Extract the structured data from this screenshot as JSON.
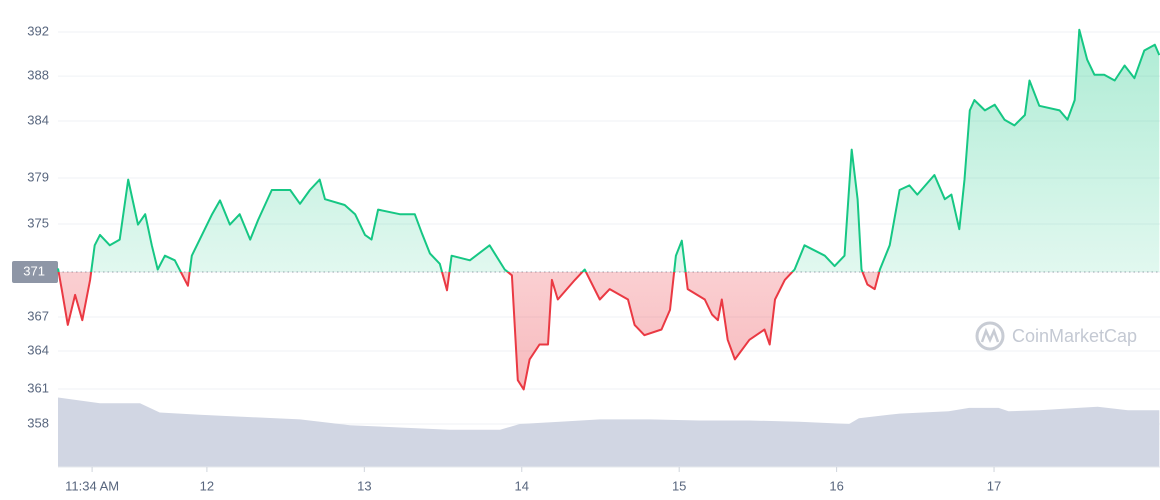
{
  "chart_data": {
    "type": "line",
    "xlim": [
      0,
      168
    ],
    "xticks": [
      {
        "value": 5.2,
        "label": "11:34 AM"
      },
      {
        "value": 22.7,
        "label": "12"
      },
      {
        "value": 46.7,
        "label": "13"
      },
      {
        "value": 70.7,
        "label": "14"
      },
      {
        "value": 94.7,
        "label": "15"
      },
      {
        "value": 118.7,
        "label": "16"
      },
      {
        "value": 142.7,
        "label": "17"
      }
    ],
    "ylim": [
      354.27,
      394.78
    ],
    "yticks": [
      {
        "value": 392,
        "label": "392"
      },
      {
        "value": 388.18,
        "label": "388"
      },
      {
        "value": 384.28,
        "label": "384"
      },
      {
        "value": 379.34,
        "label": "379"
      },
      {
        "value": 375.35,
        "label": "375"
      },
      {
        "value": 371.18,
        "label": "371"
      },
      {
        "value": 367.28,
        "label": "367"
      },
      {
        "value": 364.33,
        "label": "364"
      },
      {
        "value": 361.04,
        "label": "361"
      },
      {
        "value": 358,
        "label": "358"
      }
    ],
    "baseline": 371.18,
    "grid": true,
    "up_color": "#16c784",
    "down_color": "#ea3943",
    "watermark": "CoinMarketCap",
    "series": [
      {
        "color": "#16c784",
        "x": [
          0,
          0.6,
          1.5,
          2.6,
          3.7,
          4.9,
          5.6,
          6.4,
          7.9,
          9.4,
          10.7,
          12.2,
          13.3,
          14.3,
          15.2,
          16.3,
          17.8,
          19.8,
          20.4,
          21.6,
          23.5,
          24.7,
          26.2,
          27.7,
          29.3,
          30.5,
          32.6,
          35.4,
          36.9,
          38.4,
          39.9,
          40.7,
          43.7,
          45.3,
          46.8,
          47.8,
          48.8,
          52.1,
          54.4,
          55.5,
          56.7,
          58.2,
          59.3,
          60,
          62.8,
          65.8,
          68.1,
          69.2,
          70.1,
          71,
          71.9,
          73.4,
          74.7,
          75.3,
          76.2,
          78.8,
          80.3,
          82.6,
          84.1,
          86.9,
          87.9,
          89.4,
          92,
          93.3,
          94.2,
          95.1,
          96,
          98.6,
          99.7,
          100.6,
          101.2,
          102.1,
          103.2,
          105.4,
          107.7,
          108.5,
          109.3,
          110.8,
          112.3,
          113.8,
          116.9,
          118.4,
          119.9,
          121,
          121.9,
          122.5,
          123.4,
          124.5,
          125.3,
          126.8,
          128.3,
          129.8,
          131,
          133.6,
          135.2,
          136.2,
          137.4,
          138.2,
          139,
          139.7,
          141.3,
          142.8,
          144.3,
          145.8,
          147.4,
          148.1,
          149.6,
          152.7,
          153.9,
          155,
          155.7,
          156.9,
          158,
          159.5,
          161.1,
          162.6,
          164.1,
          165.6,
          167.2,
          167.9
        ],
        "values": [
          371.5,
          369.6,
          366.6,
          369.2,
          367,
          370.5,
          373.5,
          374.4,
          373.5,
          374,
          379.2,
          375.3,
          376.2,
          373.5,
          371.4,
          372.6,
          372.2,
          370,
          372.6,
          374,
          376.2,
          377.4,
          375.3,
          376.2,
          374,
          375.7,
          378.3,
          378.3,
          377.1,
          378.3,
          379.2,
          377.5,
          377,
          376.2,
          374.4,
          374,
          376.6,
          376.2,
          376.2,
          374.5,
          372.8,
          371.9,
          369.6,
          372.6,
          372.2,
          373.5,
          371.4,
          370.9,
          361.8,
          361,
          363.6,
          364.9,
          364.9,
          370.5,
          368.8,
          370.5,
          371.4,
          368.8,
          369.7,
          368.8,
          366.6,
          365.7,
          366.2,
          367.9,
          372.6,
          373.9,
          369.7,
          368.8,
          367.5,
          367,
          368.8,
          365.3,
          363.6,
          365.3,
          366.2,
          364.9,
          368.8,
          370.5,
          371.4,
          373.5,
          372.6,
          371.7,
          372.6,
          381.8,
          377.5,
          371.4,
          370.1,
          369.7,
          371.4,
          373.5,
          378.3,
          378.7,
          377.9,
          379.6,
          377.5,
          377.9,
          374.9,
          379.2,
          385.2,
          386.1,
          385.2,
          385.7,
          384.4,
          383.9,
          384.8,
          387.8,
          385.6,
          385.2,
          384.4,
          386.1,
          392.2,
          389.6,
          388.3,
          388.3,
          387.8,
          389.1,
          388,
          390.4,
          390.9,
          390
        ]
      },
      {
        "color": "#d1d6e3",
        "x": [
          0,
          6.4,
          12.5,
          15.5,
          21.6,
          29.3,
          36.9,
          44.5,
          52.1,
          59.7,
          67.4,
          70.4,
          76.5,
          82.6,
          90.2,
          97.8,
          105.4,
          113,
          120.6,
          122.1,
          128.3,
          135.8,
          138.9,
          143.4,
          144.9,
          149.6,
          155.5,
          158.5,
          163.1,
          167.9
        ],
        "values": [
          360.3,
          359.8,
          359.8,
          359,
          358.8,
          358.6,
          358.4,
          357.9,
          357.7,
          357.5,
          357.5,
          358,
          358.2,
          358.4,
          358.4,
          358.3,
          358.3,
          358.2,
          358,
          358.5,
          358.9,
          359.1,
          359.4,
          359.4,
          359.1,
          359.2,
          359.4,
          359.5,
          359.2,
          359.2
        ]
      }
    ]
  }
}
